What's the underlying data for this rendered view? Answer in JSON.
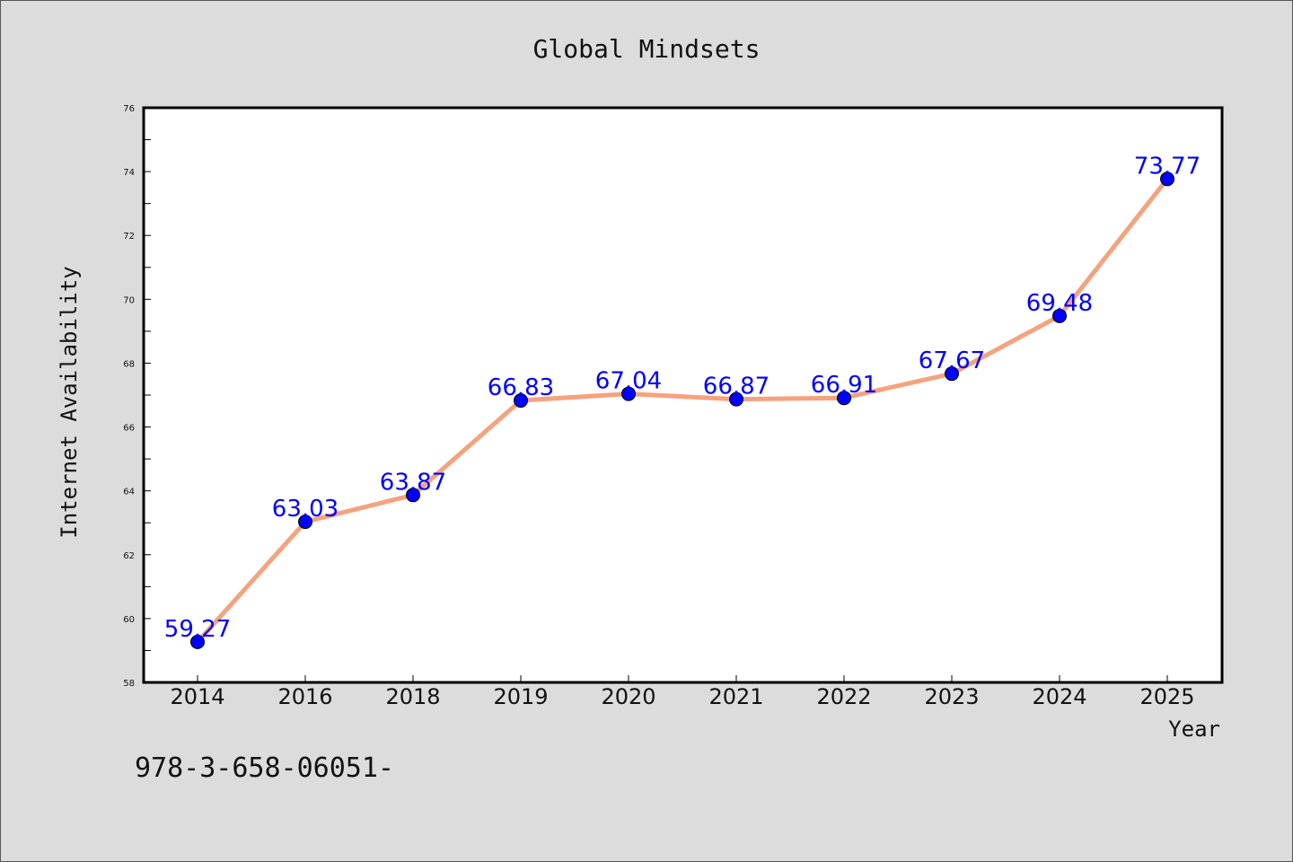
{
  "chart_data": {
    "type": "line",
    "title": "Global Mindsets",
    "xlabel": "Year",
    "ylabel": "Internet Availability",
    "categories": [
      "2014",
      "2016",
      "2018",
      "2019",
      "2020",
      "2021",
      "2022",
      "2023",
      "2024",
      "2025"
    ],
    "series": [
      {
        "values": [
          59.27,
          63.03,
          63.87,
          66.83,
          67.04,
          66.87,
          66.91,
          67.67,
          69.48,
          73.77
        ],
        "labels": [
          "59.27",
          "63.03",
          "63.87",
          "66.83",
          "67.04",
          "66.87",
          "66.91",
          "67.67",
          "69.48",
          "73.77"
        ]
      }
    ],
    "ylim": [
      58,
      76
    ],
    "yticks": [
      "58",
      "60",
      "62",
      "64",
      "66",
      "68",
      "70",
      "72",
      "74",
      "76"
    ],
    "grid": false,
    "colors": {
      "line": "#f5a27e",
      "marker": "#0000ff",
      "label": "#0000ff"
    }
  },
  "footer": {
    "text": "978-3-658-06051-"
  }
}
